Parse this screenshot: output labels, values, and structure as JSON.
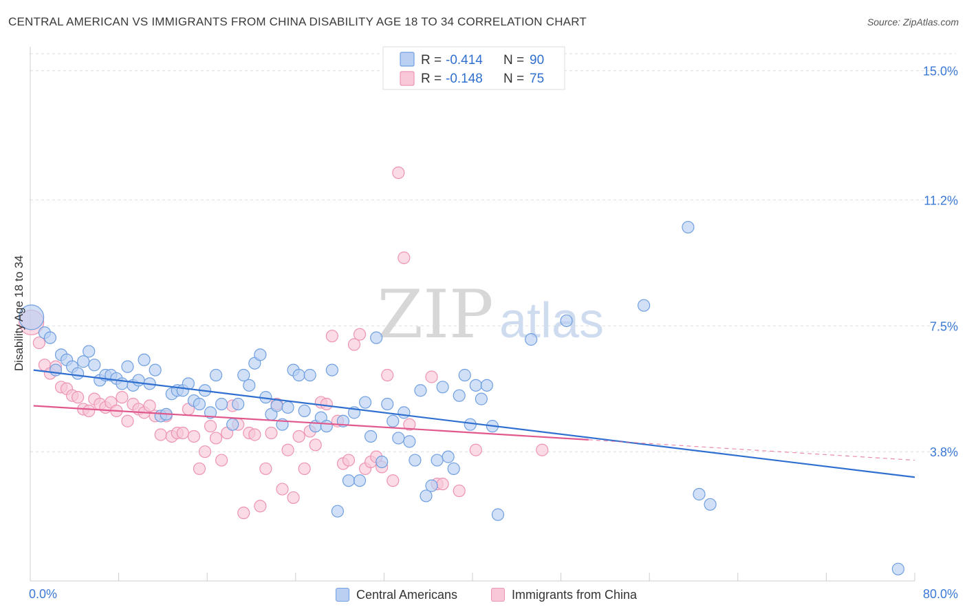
{
  "chart_data": {
    "type": "scatter",
    "title": "CENTRAL AMERICAN VS IMMIGRANTS FROM CHINA DISABILITY AGE 18 TO 34 CORRELATION CHART",
    "source": "Source: ZipAtlas.com",
    "watermark": {
      "zip": "ZIP",
      "atlas": "atlas"
    },
    "ylabel": "Disability Age 18 to 34",
    "xlim": [
      0,
      80
    ],
    "ylim": [
      0,
      15.5
    ],
    "x_tick_labels": {
      "min": "0.0%",
      "max": "80.0%"
    },
    "y_ticks": [
      3.8,
      7.5,
      11.2,
      15.0
    ],
    "y_tick_labels": [
      "3.8%",
      "7.5%",
      "11.2%",
      "15.0%"
    ],
    "legend": [
      {
        "r_label": "R =",
        "r_value": "-0.414",
        "n_label": "N =",
        "n_value": "90"
      },
      {
        "r_label": "R =",
        "r_value": "-0.148",
        "n_label": "N =",
        "n_value": "75"
      }
    ],
    "series": [
      {
        "name": "Central Americans",
        "color": "#6f9fe0",
        "fill": "#b9d0f3",
        "line_color": "#2f6fd0",
        "trend": {
          "x": [
            0.3,
            80
          ],
          "y": [
            6.2,
            3.05
          ]
        },
        "points": [
          {
            "x": 0.1,
            "y": 7.75,
            "big": true
          },
          {
            "x": 1.3,
            "y": 7.3
          },
          {
            "x": 1.8,
            "y": 7.15
          },
          {
            "x": 2.3,
            "y": 6.2
          },
          {
            "x": 2.8,
            "y": 6.65
          },
          {
            "x": 3.3,
            "y": 6.5
          },
          {
            "x": 3.8,
            "y": 6.3
          },
          {
            "x": 4.3,
            "y": 6.1
          },
          {
            "x": 4.8,
            "y": 6.45
          },
          {
            "x": 5.3,
            "y": 6.75
          },
          {
            "x": 5.8,
            "y": 6.35
          },
          {
            "x": 6.3,
            "y": 5.9
          },
          {
            "x": 6.8,
            "y": 6.05
          },
          {
            "x": 7.3,
            "y": 6.05
          },
          {
            "x": 7.8,
            "y": 5.95
          },
          {
            "x": 8.3,
            "y": 5.8
          },
          {
            "x": 8.8,
            "y": 6.3
          },
          {
            "x": 9.3,
            "y": 5.75
          },
          {
            "x": 9.8,
            "y": 5.9
          },
          {
            "x": 10.3,
            "y": 6.5
          },
          {
            "x": 10.8,
            "y": 5.8
          },
          {
            "x": 11.3,
            "y": 6.2
          },
          {
            "x": 11.8,
            "y": 4.85
          },
          {
            "x": 12.3,
            "y": 4.9
          },
          {
            "x": 12.8,
            "y": 5.5
          },
          {
            "x": 13.3,
            "y": 5.6
          },
          {
            "x": 13.8,
            "y": 5.6
          },
          {
            "x": 14.3,
            "y": 5.8
          },
          {
            "x": 14.8,
            "y": 5.3
          },
          {
            "x": 15.3,
            "y": 5.2
          },
          {
            "x": 15.8,
            "y": 5.6
          },
          {
            "x": 16.3,
            "y": 4.95
          },
          {
            "x": 16.8,
            "y": 6.05
          },
          {
            "x": 17.3,
            "y": 5.2
          },
          {
            "x": 18.3,
            "y": 4.6
          },
          {
            "x": 18.8,
            "y": 5.2
          },
          {
            "x": 19.3,
            "y": 6.05
          },
          {
            "x": 19.8,
            "y": 5.75
          },
          {
            "x": 20.3,
            "y": 6.4
          },
          {
            "x": 20.8,
            "y": 6.65
          },
          {
            "x": 21.3,
            "y": 5.4
          },
          {
            "x": 21.8,
            "y": 4.9
          },
          {
            "x": 22.3,
            "y": 5.15
          },
          {
            "x": 22.8,
            "y": 4.6
          },
          {
            "x": 23.3,
            "y": 5.1
          },
          {
            "x": 23.8,
            "y": 6.2
          },
          {
            "x": 24.3,
            "y": 6.05
          },
          {
            "x": 24.8,
            "y": 5.0
          },
          {
            "x": 25.3,
            "y": 6.05
          },
          {
            "x": 25.8,
            "y": 4.55
          },
          {
            "x": 26.3,
            "y": 4.8
          },
          {
            "x": 26.8,
            "y": 4.55
          },
          {
            "x": 27.3,
            "y": 6.2
          },
          {
            "x": 27.8,
            "y": 2.05
          },
          {
            "x": 28.3,
            "y": 4.7
          },
          {
            "x": 28.8,
            "y": 2.95
          },
          {
            "x": 29.3,
            "y": 4.95
          },
          {
            "x": 29.8,
            "y": 2.95
          },
          {
            "x": 30.3,
            "y": 5.25
          },
          {
            "x": 30.8,
            "y": 4.25
          },
          {
            "x": 31.3,
            "y": 7.15
          },
          {
            "x": 31.8,
            "y": 3.5
          },
          {
            "x": 32.3,
            "y": 5.2
          },
          {
            "x": 32.8,
            "y": 4.7
          },
          {
            "x": 33.3,
            "y": 4.2
          },
          {
            "x": 33.8,
            "y": 4.95
          },
          {
            "x": 34.3,
            "y": 4.1
          },
          {
            "x": 34.8,
            "y": 3.55
          },
          {
            "x": 35.3,
            "y": 5.6
          },
          {
            "x": 35.8,
            "y": 2.5
          },
          {
            "x": 36.3,
            "y": 2.8
          },
          {
            "x": 36.8,
            "y": 3.55
          },
          {
            "x": 37.3,
            "y": 5.7
          },
          {
            "x": 37.8,
            "y": 3.65
          },
          {
            "x": 38.3,
            "y": 3.3
          },
          {
            "x": 38.8,
            "y": 5.45
          },
          {
            "x": 39.3,
            "y": 6.05
          },
          {
            "x": 39.8,
            "y": 4.6
          },
          {
            "x": 40.3,
            "y": 5.75
          },
          {
            "x": 40.8,
            "y": 5.35
          },
          {
            "x": 41.3,
            "y": 5.75
          },
          {
            "x": 41.8,
            "y": 4.55
          },
          {
            "x": 42.3,
            "y": 1.95
          },
          {
            "x": 45.3,
            "y": 7.1
          },
          {
            "x": 48.5,
            "y": 7.65
          },
          {
            "x": 55.5,
            "y": 8.1
          },
          {
            "x": 59.5,
            "y": 10.4
          },
          {
            "x": 60.5,
            "y": 2.55
          },
          {
            "x": 61.5,
            "y": 2.25
          },
          {
            "x": 78.5,
            "y": 0.35
          }
        ]
      },
      {
        "name": "Immigrants from China",
        "color": "#ee93b2",
        "fill": "#f8c8d8",
        "line_color": "#e0588c",
        "trend": {
          "x": [
            0.3,
            50.5
          ],
          "y": [
            5.15,
            4.15
          ]
        },
        "trend_dash": {
          "x": [
            50.5,
            80
          ],
          "y": [
            4.15,
            3.55
          ]
        },
        "points": [
          {
            "x": 0.1,
            "y": 7.6,
            "big": true
          },
          {
            "x": 0.8,
            "y": 7.0
          },
          {
            "x": 1.3,
            "y": 6.35
          },
          {
            "x": 1.8,
            "y": 6.1
          },
          {
            "x": 2.3,
            "y": 6.3
          },
          {
            "x": 2.8,
            "y": 5.7
          },
          {
            "x": 3.3,
            "y": 5.65
          },
          {
            "x": 3.8,
            "y": 5.45
          },
          {
            "x": 4.3,
            "y": 5.4
          },
          {
            "x": 4.8,
            "y": 5.05
          },
          {
            "x": 5.3,
            "y": 5.0
          },
          {
            "x": 5.8,
            "y": 5.35
          },
          {
            "x": 6.3,
            "y": 5.2
          },
          {
            "x": 6.8,
            "y": 5.1
          },
          {
            "x": 7.3,
            "y": 5.25
          },
          {
            "x": 7.8,
            "y": 5.0
          },
          {
            "x": 8.3,
            "y": 5.4
          },
          {
            "x": 8.8,
            "y": 4.7
          },
          {
            "x": 9.3,
            "y": 5.2
          },
          {
            "x": 9.8,
            "y": 5.05
          },
          {
            "x": 10.3,
            "y": 4.95
          },
          {
            "x": 10.8,
            "y": 5.15
          },
          {
            "x": 11.3,
            "y": 4.85
          },
          {
            "x": 11.8,
            "y": 4.3
          },
          {
            "x": 12.3,
            "y": 4.85
          },
          {
            "x": 12.8,
            "y": 4.25
          },
          {
            "x": 13.3,
            "y": 4.35
          },
          {
            "x": 13.8,
            "y": 4.35
          },
          {
            "x": 14.3,
            "y": 5.05
          },
          {
            "x": 14.8,
            "y": 4.25
          },
          {
            "x": 15.3,
            "y": 3.3
          },
          {
            "x": 15.8,
            "y": 3.8
          },
          {
            "x": 16.3,
            "y": 4.55
          },
          {
            "x": 16.8,
            "y": 4.2
          },
          {
            "x": 17.3,
            "y": 3.55
          },
          {
            "x": 17.8,
            "y": 4.35
          },
          {
            "x": 18.3,
            "y": 5.15
          },
          {
            "x": 18.8,
            "y": 4.6
          },
          {
            "x": 19.3,
            "y": 2.0
          },
          {
            "x": 19.8,
            "y": 4.35
          },
          {
            "x": 20.3,
            "y": 4.3
          },
          {
            "x": 20.8,
            "y": 2.2
          },
          {
            "x": 21.3,
            "y": 3.3
          },
          {
            "x": 21.8,
            "y": 4.35
          },
          {
            "x": 22.3,
            "y": 5.2
          },
          {
            "x": 22.8,
            "y": 2.7
          },
          {
            "x": 23.3,
            "y": 3.85
          },
          {
            "x": 23.8,
            "y": 2.45
          },
          {
            "x": 24.3,
            "y": 4.25
          },
          {
            "x": 24.8,
            "y": 3.3
          },
          {
            "x": 25.3,
            "y": 4.4
          },
          {
            "x": 25.8,
            "y": 4.0
          },
          {
            "x": 26.3,
            "y": 5.25
          },
          {
            "x": 26.8,
            "y": 5.2
          },
          {
            "x": 27.3,
            "y": 7.2
          },
          {
            "x": 27.8,
            "y": 4.7
          },
          {
            "x": 28.3,
            "y": 3.45
          },
          {
            "x": 28.8,
            "y": 3.55
          },
          {
            "x": 29.3,
            "y": 6.95
          },
          {
            "x": 29.8,
            "y": 7.25
          },
          {
            "x": 30.3,
            "y": 3.3
          },
          {
            "x": 30.8,
            "y": 3.5
          },
          {
            "x": 31.3,
            "y": 3.65
          },
          {
            "x": 31.8,
            "y": 3.35
          },
          {
            "x": 32.3,
            "y": 6.05
          },
          {
            "x": 32.8,
            "y": 2.95
          },
          {
            "x": 33.3,
            "y": 12.0
          },
          {
            "x": 33.8,
            "y": 9.5
          },
          {
            "x": 34.3,
            "y": 4.6
          },
          {
            "x": 36.3,
            "y": 6.0
          },
          {
            "x": 36.8,
            "y": 2.85
          },
          {
            "x": 37.3,
            "y": 2.85
          },
          {
            "x": 38.8,
            "y": 2.65
          },
          {
            "x": 40.3,
            "y": 3.85
          },
          {
            "x": 46.3,
            "y": 3.85
          }
        ]
      }
    ]
  }
}
